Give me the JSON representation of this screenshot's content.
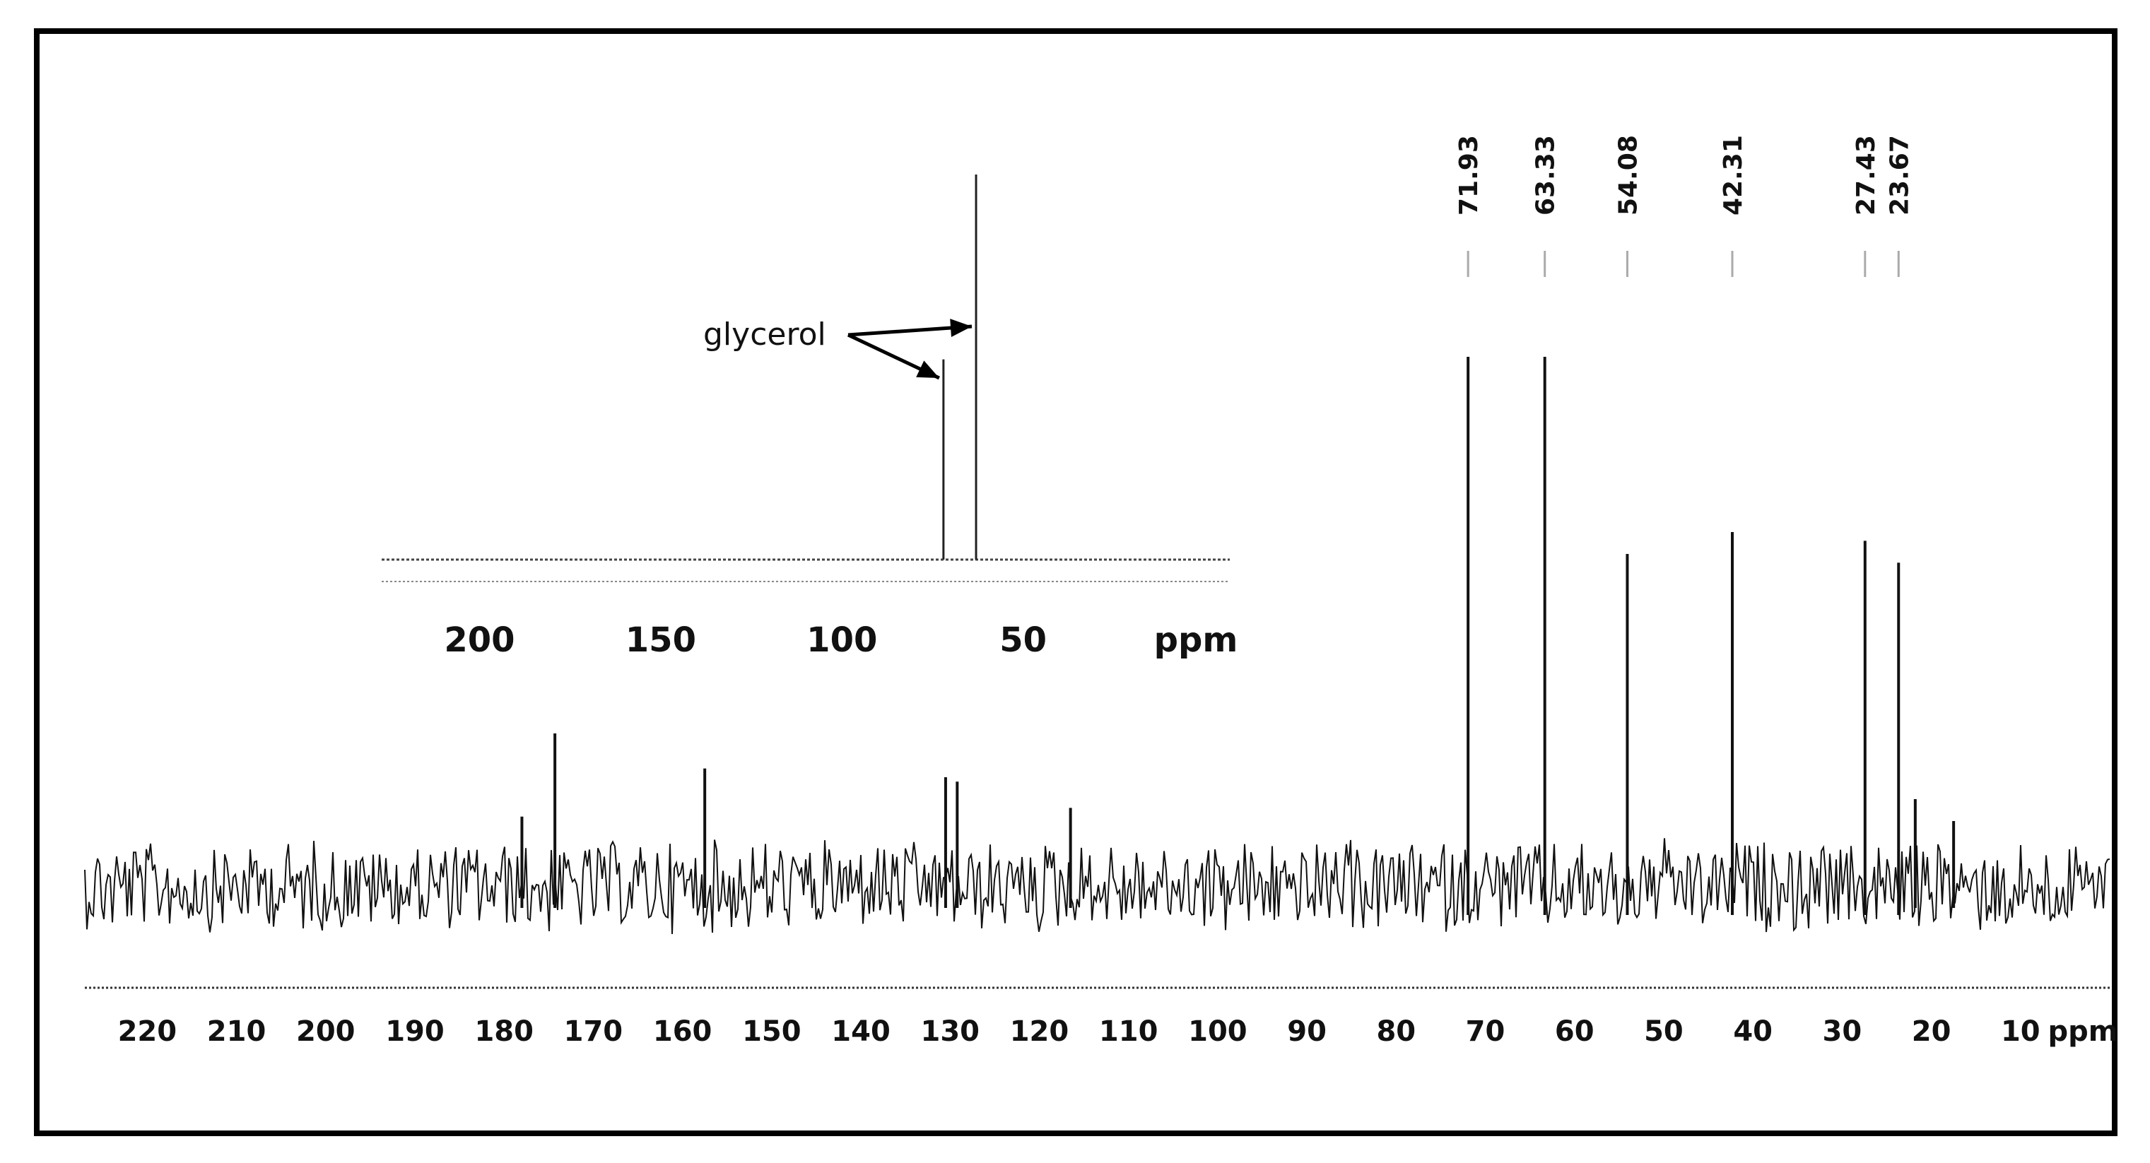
{
  "chart_data": [
    {
      "type": "line",
      "title": "",
      "xlabel": "",
      "ylabel": "",
      "x_unit": "ppm",
      "xlim": [
        227,
        0
      ],
      "x_ticks": [
        "220",
        "210",
        "200",
        "190",
        "180",
        "170",
        "160",
        "150",
        "140",
        "130",
        "120",
        "110",
        "100",
        "90",
        "80",
        "70",
        "60",
        "50",
        "40",
        "30",
        "20",
        "10",
        "ppm"
      ],
      "x_tick_values": [
        220,
        210,
        200,
        190,
        180,
        170,
        160,
        150,
        140,
        130,
        120,
        110,
        100,
        90,
        80,
        70,
        60,
        50,
        40,
        30,
        20,
        10
      ],
      "grid": false,
      "labeled_peaks": [
        {
          "label": "71.93",
          "ppm": 71.93,
          "intensity": 1.0
        },
        {
          "label": "63.33",
          "ppm": 63.33,
          "intensity": 1.0
        },
        {
          "label": "54.08",
          "ppm": 54.08,
          "intensity": 0.55
        },
        {
          "label": "42.31",
          "ppm": 42.31,
          "intensity": 0.6
        },
        {
          "label": "27.43",
          "ppm": 27.43,
          "intensity": 0.58
        },
        {
          "label": "23.67",
          "ppm": 23.67,
          "intensity": 0.53
        }
      ],
      "minor_peaks": [
        {
          "ppm": 174.3,
          "intensity": 0.35
        },
        {
          "ppm": 178.0,
          "intensity": 0.16
        },
        {
          "ppm": 157.5,
          "intensity": 0.27
        },
        {
          "ppm": 130.5,
          "intensity": 0.25
        },
        {
          "ppm": 129.2,
          "intensity": 0.24
        },
        {
          "ppm": 116.5,
          "intensity": 0.18
        },
        {
          "ppm": 21.8,
          "intensity": 0.2
        },
        {
          "ppm": 17.5,
          "intensity": 0.15
        }
      ]
    },
    {
      "type": "line",
      "title": "",
      "x_unit": "ppm",
      "xlim": [
        227,
        -7
      ],
      "x_ticks": [
        "200",
        "150",
        "100",
        "50",
        "ppm"
      ],
      "x_tick_values": [
        200,
        150,
        100,
        50
      ],
      "peaks": [
        {
          "ppm": 72.0,
          "intensity": 0.52
        },
        {
          "ppm": 63.0,
          "intensity": 1.0
        }
      ],
      "annotation": "glycerol"
    }
  ],
  "colors": {
    "trace": "#111111",
    "frame": "#000000",
    "background": "#ffffff"
  }
}
